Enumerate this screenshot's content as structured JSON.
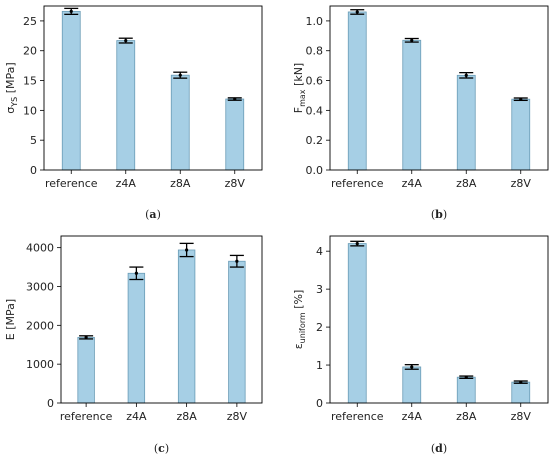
{
  "colors": {
    "bar_fill": "#a6cfe5",
    "bar_edge": "#6a9cb6",
    "errorbar": "#000000",
    "axes": "#000000"
  },
  "chart_data": [
    {
      "type": "bar",
      "panel": "(a)",
      "categories": [
        "reference",
        "z4A",
        "z8A",
        "z8V"
      ],
      "values": [
        26.6,
        21.7,
        15.9,
        11.9
      ],
      "errors": [
        0.5,
        0.4,
        0.5,
        0.2
      ],
      "ylabel": "σ",
      "ylabel_sub": "YS",
      "ylabel_unit": " [MPa]",
      "ylim": [
        0,
        27.5
      ],
      "yticks": [
        0,
        5,
        10,
        15,
        20,
        25
      ],
      "grid": false,
      "legend": "none"
    },
    {
      "type": "bar",
      "panel": "(b)",
      "categories": [
        "reference",
        "z4A",
        "z8A",
        "z8V"
      ],
      "values": [
        1.06,
        0.87,
        0.635,
        0.475
      ],
      "errors": [
        0.015,
        0.012,
        0.018,
        0.008
      ],
      "ylabel": "F",
      "ylabel_sub": "max",
      "ylabel_unit": " [kN]",
      "ylim": [
        0,
        1.1
      ],
      "yticks": [
        0.0,
        0.2,
        0.4,
        0.6,
        0.8,
        1.0
      ],
      "grid": false,
      "legend": "none"
    },
    {
      "type": "bar",
      "panel": "(c)",
      "categories": [
        "reference",
        "z4A",
        "z8A",
        "z8V"
      ],
      "values": [
        1690,
        3340,
        3940,
        3650
      ],
      "errors": [
        40,
        160,
        170,
        150
      ],
      "ylabel": "E [MPa]",
      "ylabel_sub": "",
      "ylabel_unit": "",
      "ylim": [
        0,
        4300
      ],
      "yticks": [
        0,
        1000,
        2000,
        3000,
        4000
      ],
      "grid": false,
      "legend": "none"
    },
    {
      "type": "bar",
      "panel": "(d)",
      "categories": [
        "reference",
        "z4A",
        "z8A",
        "z8V"
      ],
      "values": [
        4.2,
        0.95,
        0.68,
        0.55
      ],
      "errors": [
        0.06,
        0.06,
        0.03,
        0.03
      ],
      "ylabel": "ε",
      "ylabel_sub": "uniform",
      "ylabel_unit": " [%]",
      "ylim": [
        0,
        4.4
      ],
      "yticks": [
        0,
        1,
        2,
        3,
        4
      ],
      "grid": false,
      "legend": "none"
    }
  ]
}
